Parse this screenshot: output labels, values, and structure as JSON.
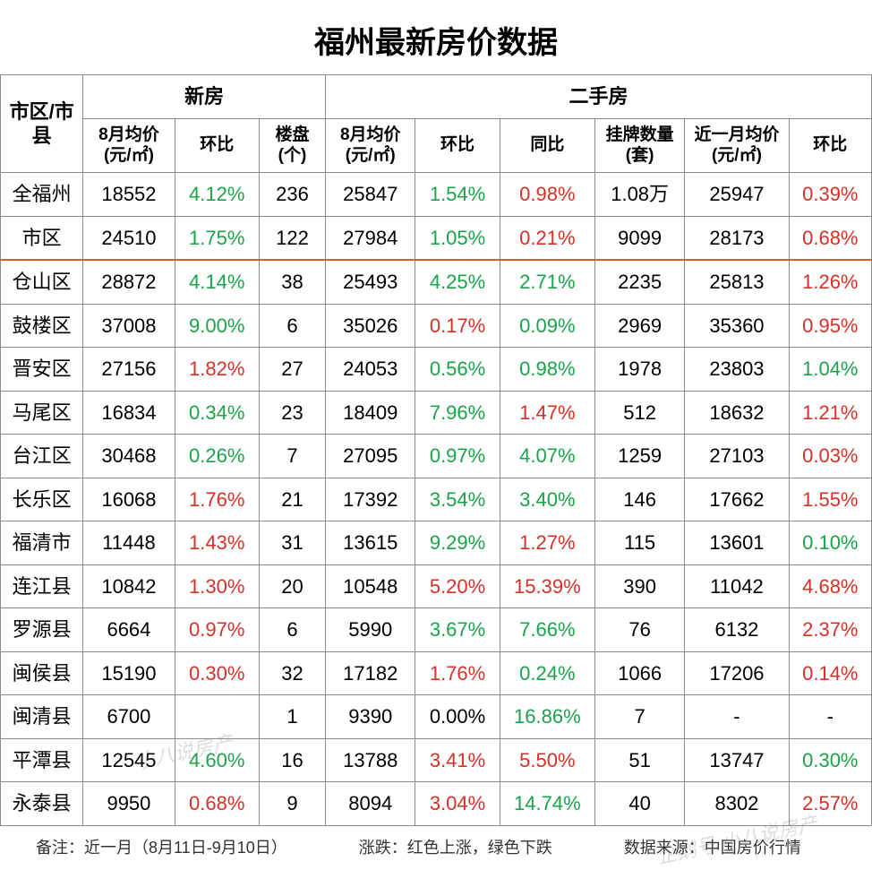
{
  "title": "福州最新房价数据",
  "colors": {
    "up": "#d73027",
    "down": "#1aa34a",
    "neutral": "#000000",
    "border": "#8b8b8b",
    "separator": "#c96a2c",
    "background": "#ffffff"
  },
  "typography": {
    "title_fontsize": 34,
    "header_fontsize": 22,
    "subheader_fontsize": 19,
    "cell_fontsize": 22,
    "footer_fontsize": 18,
    "font_family": "Microsoft YaHei"
  },
  "header": {
    "region": "市区/市县",
    "group_new": "新房",
    "group_second": "二手房",
    "sub": {
      "n1": "8月均价(元/㎡)",
      "n2": "环比",
      "n3": "楼盘(个)",
      "s1": "8月均价(元/㎡)",
      "s2": "环比",
      "s3": "同比",
      "s4": "挂牌数量(套)",
      "s5": "近一月均价(元/㎡)",
      "s6": "环比"
    }
  },
  "rows": [
    {
      "region": "全福州",
      "n1": "18552",
      "n2": "4.12%",
      "n2c": "down",
      "n3": "236",
      "s1": "25847",
      "s2": "1.54%",
      "s2c": "down",
      "s3": "0.98%",
      "s3c": "up",
      "s4": "1.08万",
      "s5": "25947",
      "s6": "0.39%",
      "s6c": "up",
      "sep": false
    },
    {
      "region": "市区",
      "n1": "24510",
      "n2": "1.75%",
      "n2c": "down",
      "n3": "122",
      "s1": "27984",
      "s2": "1.05%",
      "s2c": "down",
      "s3": "0.21%",
      "s3c": "up",
      "s4": "9099",
      "s5": "28173",
      "s6": "0.68%",
      "s6c": "up",
      "sep": true
    },
    {
      "region": "仓山区",
      "n1": "28872",
      "n2": "4.14%",
      "n2c": "down",
      "n3": "38",
      "s1": "25493",
      "s2": "4.25%",
      "s2c": "down",
      "s3": "2.71%",
      "s3c": "down",
      "s4": "2235",
      "s5": "25813",
      "s6": "1.26%",
      "s6c": "up",
      "sep": false
    },
    {
      "region": "鼓楼区",
      "n1": "37008",
      "n2": "9.00%",
      "n2c": "down",
      "n3": "6",
      "s1": "35026",
      "s2": "0.17%",
      "s2c": "up",
      "s3": "0.09%",
      "s3c": "down",
      "s4": "2969",
      "s5": "35360",
      "s6": "0.95%",
      "s6c": "up",
      "sep": false
    },
    {
      "region": "晋安区",
      "n1": "27156",
      "n2": "1.82%",
      "n2c": "up",
      "n3": "27",
      "s1": "24053",
      "s2": "0.56%",
      "s2c": "down",
      "s3": "0.98%",
      "s3c": "down",
      "s4": "1978",
      "s5": "23803",
      "s6": "1.04%",
      "s6c": "down",
      "sep": false
    },
    {
      "region": "马尾区",
      "n1": "16834",
      "n2": "0.34%",
      "n2c": "down",
      "n3": "23",
      "s1": "18409",
      "s2": "7.96%",
      "s2c": "down",
      "s3": "1.47%",
      "s3c": "up",
      "s4": "512",
      "s5": "18632",
      "s6": "1.21%",
      "s6c": "up",
      "sep": false
    },
    {
      "region": "台江区",
      "n1": "30468",
      "n2": "0.26%",
      "n2c": "down",
      "n3": "7",
      "s1": "27095",
      "s2": "0.97%",
      "s2c": "down",
      "s3": "4.07%",
      "s3c": "down",
      "s4": "1259",
      "s5": "27103",
      "s6": "0.03%",
      "s6c": "up",
      "sep": false
    },
    {
      "region": "长乐区",
      "n1": "16068",
      "n2": "1.76%",
      "n2c": "up",
      "n3": "21",
      "s1": "17392",
      "s2": "3.54%",
      "s2c": "down",
      "s3": "3.40%",
      "s3c": "down",
      "s4": "146",
      "s5": "17662",
      "s6": "1.55%",
      "s6c": "up",
      "sep": false
    },
    {
      "region": "福清市",
      "n1": "11448",
      "n2": "1.43%",
      "n2c": "up",
      "n3": "31",
      "s1": "13615",
      "s2": "9.29%",
      "s2c": "down",
      "s3": "1.27%",
      "s3c": "up",
      "s4": "115",
      "s5": "13601",
      "s6": "0.10%",
      "s6c": "down",
      "sep": false
    },
    {
      "region": "连江县",
      "n1": "10842",
      "n2": "1.30%",
      "n2c": "up",
      "n3": "20",
      "s1": "10548",
      "s2": "5.20%",
      "s2c": "up",
      "s3": "15.39%",
      "s3c": "up",
      "s4": "390",
      "s5": "11042",
      "s6": "4.68%",
      "s6c": "up",
      "sep": false
    },
    {
      "region": "罗源县",
      "n1": "6664",
      "n2": "0.97%",
      "n2c": "up",
      "n3": "6",
      "s1": "5990",
      "s2": "3.67%",
      "s2c": "down",
      "s3": "7.66%",
      "s3c": "down",
      "s4": "76",
      "s5": "6132",
      "s6": "2.37%",
      "s6c": "up",
      "sep": false
    },
    {
      "region": "闽侯县",
      "n1": "15190",
      "n2": "0.30%",
      "n2c": "up",
      "n3": "32",
      "s1": "17182",
      "s2": "1.76%",
      "s2c": "up",
      "s3": "0.24%",
      "s3c": "down",
      "s4": "1066",
      "s5": "17206",
      "s6": "0.14%",
      "s6c": "up",
      "sep": false
    },
    {
      "region": "闽清县",
      "n1": "6700",
      "n2": "",
      "n2c": "neutral",
      "n3": "1",
      "s1": "9390",
      "s2": "0.00%",
      "s2c": "neutral",
      "s3": "16.86%",
      "s3c": "down",
      "s4": "7",
      "s5": "-",
      "s6": "-",
      "s6c": "neutral",
      "sep": false
    },
    {
      "region": "平潭县",
      "n1": "12545",
      "n2": "4.60%",
      "n2c": "down",
      "n3": "16",
      "s1": "13788",
      "s2": "3.41%",
      "s2c": "up",
      "s3": "5.50%",
      "s3c": "up",
      "s4": "51",
      "s5": "13747",
      "s6": "0.30%",
      "s6c": "down",
      "sep": false
    },
    {
      "region": "永泰县",
      "n1": "9950",
      "n2": "0.68%",
      "n2c": "up",
      "n3": "9",
      "s1": "8094",
      "s2": "3.04%",
      "s2c": "up",
      "s3": "14.74%",
      "s3c": "down",
      "s4": "40",
      "s5": "8302",
      "s6": "2.57%",
      "s6c": "up",
      "sep": false
    }
  ],
  "footer": {
    "note": "备注：近一月（8月11日-9月10日）",
    "legend": "涨跌：红色上涨，绿色下跌",
    "source": "数据来源：中国房价行情"
  },
  "watermark": {
    "wm1": "小八说房产",
    "wm2": "企鹅号 小八说房产"
  }
}
